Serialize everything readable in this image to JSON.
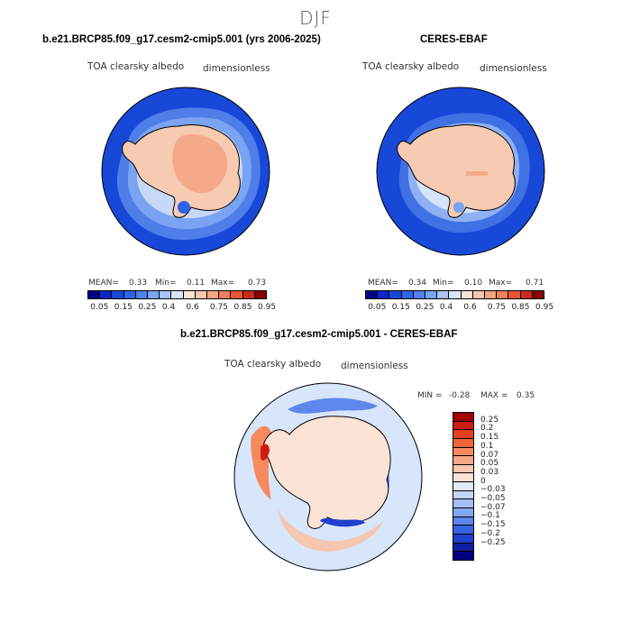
{
  "season": "DJF",
  "colors": {
    "ocean_low": "#1848d8",
    "sea_ice_mid": "#6e9cf0",
    "sea_ice_light": "#c7d8f6",
    "land_high": "#f7cbb2",
    "land_higher": "#f4a98a",
    "diff_zero": "#d8e6fb",
    "diff_pos": "#f5c6b0"
  },
  "panel1": {
    "title": "b.e21.BRCP85.f09_g17.cesm2-cmip5.001 (yrs 2006-2025)",
    "var_label": "TOA clearsky albedo",
    "units": "dimensionless",
    "mean_label": "MEAN=",
    "mean_value": "0.33",
    "min_label": "Min=",
    "min_value": "0.11",
    "max_label": "Max=",
    "max_value": "0.73"
  },
  "panel2": {
    "title": "CERES-EBAF",
    "var_label": "TOA clearsky albedo",
    "units": "dimensionless",
    "mean_label": "MEAN=",
    "mean_value": "0.34",
    "min_label": "Min=",
    "min_value": "0.10",
    "max_label": "Max=",
    "max_value": "0.71"
  },
  "colorbar_top": {
    "colors": [
      "#00008b",
      "#0a28c8",
      "#1848d8",
      "#2f64e6",
      "#4f82ee",
      "#7aa3f4",
      "#a9c3f7",
      "#d6e4fa",
      "#fbe3d3",
      "#f8c6ad",
      "#f4a584",
      "#ef7f5b",
      "#e55536",
      "#cc2a1c",
      "#8b0000"
    ],
    "labels": [
      "0.05",
      "0.15",
      "0.25",
      "0.4",
      "0.6",
      "0.75",
      "0.85",
      "0.95"
    ]
  },
  "panel3": {
    "title": "b.e21.BRCP85.f09_g17.cesm2-cmip5.001 - CERES-EBAF",
    "var_label": "TOA clearsky albedo",
    "units": "dimensionless",
    "min_label": "MIN =",
    "min_value": "-0.28",
    "max_label": "MAX =",
    "max_value": "0.35"
  },
  "colorbar_diff": {
    "colors": [
      "#a00000",
      "#cc1e10",
      "#e4411f",
      "#f26535",
      "#f6895e",
      "#f8a887",
      "#fac6b0",
      "#fde3d6",
      "#e0ebfb",
      "#c4d6f8",
      "#a5bff5",
      "#85a6f1",
      "#5f87ec",
      "#3a63e2",
      "#1f3fcc",
      "#10209e",
      "#000080"
    ],
    "labels": [
      "0.25",
      "0.2",
      "0.15",
      "0.1",
      "0.07",
      "0.05",
      "0.03",
      "0",
      "−0.03",
      "−0.05",
      "−0.07",
      "−0.1",
      "−0.15",
      "−0.2",
      "−0.25"
    ]
  }
}
